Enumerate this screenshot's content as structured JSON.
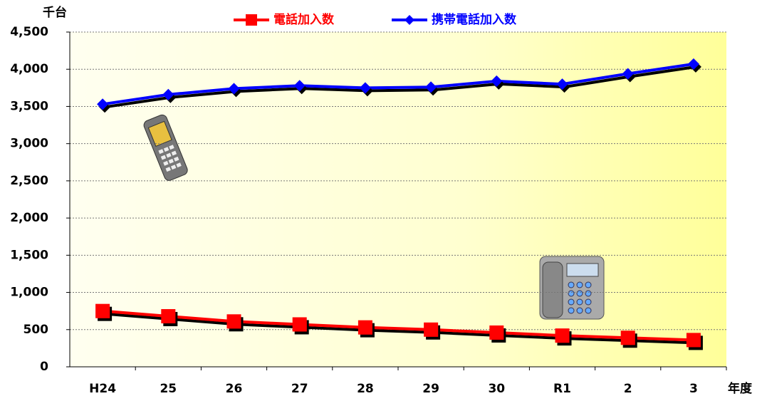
{
  "chart_data": {
    "type": "line",
    "y_unit": "千台",
    "x_label": "年度",
    "categories": [
      "H24",
      "25",
      "26",
      "27",
      "28",
      "29",
      "30",
      "R1",
      "2",
      "3"
    ],
    "series": [
      {
        "name": "電話加入数",
        "color": "#ff0000",
        "marker": "square",
        "values": [
          750,
          680,
          610,
          570,
          530,
          500,
          460,
          420,
          390,
          360
        ]
      },
      {
        "name": "携帯電話加入数",
        "color": "#0000ff",
        "marker": "diamond",
        "values": [
          3530,
          3660,
          3740,
          3780,
          3750,
          3760,
          3840,
          3800,
          3940,
          4070
        ]
      }
    ],
    "ylim": [
      0,
      4500
    ],
    "yticks": [
      0,
      500,
      {
        "value": 1000,
        "label": "1,000"
      },
      {
        "value": 1500,
        "label": "1,500"
      },
      {
        "value": 2000,
        "label": "2,000"
      },
      {
        "value": 2500,
        "label": "2,500"
      },
      {
        "value": 3000,
        "label": "3,000"
      },
      {
        "value": 3500,
        "label": "3,500"
      },
      {
        "value": 4000,
        "label": "4,000"
      },
      {
        "value": 4500,
        "label": "4,500"
      }
    ],
    "grid": true
  }
}
